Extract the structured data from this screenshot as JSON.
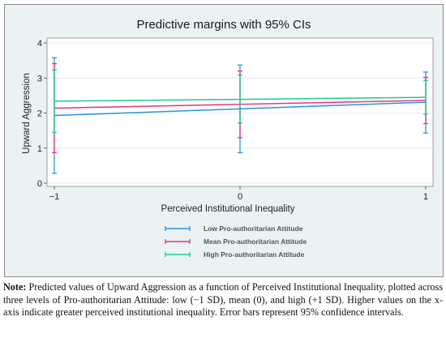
{
  "chart_data": {
    "type": "line",
    "title": "Predictive margins with 95% CIs",
    "xlabel": "Perceived Institutional Inequality",
    "ylabel": "Upward Aggression",
    "x": [
      -1,
      0,
      1
    ],
    "x_tick_labels": [
      "−1",
      "0",
      "1"
    ],
    "xlim": [
      -1,
      1
    ],
    "ylim": [
      0,
      4
    ],
    "y_ticks": [
      0,
      1,
      2,
      3,
      4
    ],
    "y_tick_labels": [
      "0",
      "1",
      "2",
      "3",
      "4"
    ],
    "grid": "horizontal",
    "legend_position": "bottom",
    "series": [
      {
        "name": "Low Pro-authoritarian Attitude",
        "color": "#2b93e0",
        "values": [
          1.93,
          2.12,
          2.31
        ],
        "ci_low": [
          0.28,
          0.87,
          1.43
        ],
        "ci_high": [
          3.58,
          3.37,
          3.17
        ]
      },
      {
        "name": "Mean Pro-authoritarian Attitude",
        "color": "#e8337a",
        "values": [
          2.14,
          2.25,
          2.36
        ],
        "ci_low": [
          0.87,
          1.3,
          1.7
        ],
        "ci_high": [
          3.41,
          3.2,
          3.02
        ]
      },
      {
        "name": "High Pro-authoritarian Attitude",
        "color": "#20c98f",
        "values": [
          2.34,
          2.39,
          2.45
        ],
        "ci_low": [
          1.45,
          1.72,
          1.97
        ],
        "ci_high": [
          3.23,
          3.08,
          2.93
        ]
      }
    ]
  },
  "note": {
    "label": "Note:",
    "text": "Predicted values of Upward Aggression as a function of Perceived Institutional Inequality, plotted across three levels of Pro-authoritarian Attitude: low (−1 SD), mean (0), and high (+1 SD). Higher values on the x-axis indicate greater perceived institutional inequality. Error bars represent 95% confidence intervals."
  }
}
